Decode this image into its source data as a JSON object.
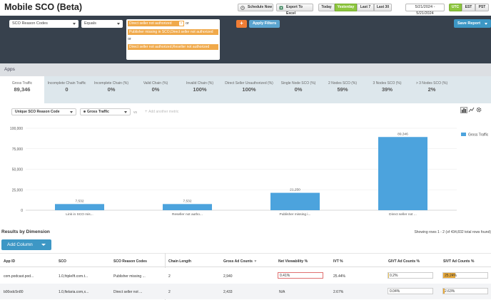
{
  "header": {
    "title": "Mobile SCO (Beta)",
    "schedule_label": "Schedule Now",
    "export_label": "Export To Excel",
    "ranges": [
      {
        "label": "Today",
        "active": false
      },
      {
        "label": "Yesterday",
        "active": true
      },
      {
        "label": "Last 7",
        "active": false
      },
      {
        "label": "Last 30",
        "active": false
      }
    ],
    "date_range": "5/21/2024 - 5/21/2024",
    "timezones": [
      {
        "label": "UTC",
        "active": true
      },
      {
        "label": "EST",
        "active": false
      },
      {
        "label": "PST",
        "active": false
      }
    ]
  },
  "filter": {
    "field": "SCO Reason Codes",
    "operator": "Equals",
    "values": [
      "Direct seller not authorized",
      "Publisher missing in SCO,Direct seller not authorized",
      "Direct seller not authorized,Reseller not authorized"
    ],
    "or_label": "or",
    "add_icon": "plus-icon",
    "apply_label": "Apply Filters",
    "save_label": "Save Report",
    "colors": {
      "bar_bg": "#37414d",
      "tag": "#f0a94a",
      "add": "#f07d35",
      "apply": "#5ba4cf",
      "save": "#3d97c5"
    }
  },
  "apps_label": "Apps",
  "metrics": [
    {
      "label": "Gross Traffic",
      "value": "89,346",
      "selected": true
    },
    {
      "label": "Incomplete Chain Traffic",
      "value": "0",
      "selected": false
    },
    {
      "label": "Incomplete Chain (%)",
      "value": "0%",
      "selected": false
    },
    {
      "label": "Valid Chain (%)",
      "value": "0%",
      "selected": false
    },
    {
      "label": "Invalid Chain (%)",
      "value": "100%",
      "selected": false
    },
    {
      "label": "Direct Seller Unauthorized (%)",
      "value": "100%",
      "selected": false
    },
    {
      "label": "Single Node SCO (%)",
      "value": "0%",
      "selected": false
    },
    {
      "label": "2 Nodes SCO (%)",
      "value": "59%",
      "selected": false
    },
    {
      "label": "3 Nodes SCO (%)",
      "value": "39%",
      "selected": false
    },
    {
      "label": "> 3 Nodes SCO (%)",
      "value": "2%",
      "selected": false
    }
  ],
  "chart_controls": {
    "dimension": "Unique SCO Reason Code",
    "metric": "Gross Traffic",
    "vs_label": "vs",
    "add_metric_label": "Add another metric",
    "icons": [
      "bar-chart-icon",
      "line-chart-icon",
      "settings-icon"
    ]
  },
  "chart_data": {
    "type": "bar",
    "categories": [
      "Link in SCO mis...",
      "Reseller not autho...",
      "Publisher missing i...",
      "Direct seller not ..."
    ],
    "values": [
      7532,
      7532,
      21250,
      89346
    ],
    "data_labels": [
      "7,532",
      "7,532",
      "21,250",
      "89,346"
    ],
    "y_ticks": [
      "100,000",
      "75,000",
      "50,000",
      "25,000",
      "0"
    ],
    "ylim": [
      0,
      100000
    ],
    "legend": [
      {
        "name": "Gross Traffic",
        "color": "#4ca3dd"
      }
    ],
    "legend_position": "top-right",
    "bar_color": "#4ca3dd",
    "grid": true
  },
  "results": {
    "title": "Results by Dimension",
    "showing": "Showing rows 1 - 2 (of 434,832 total rows found)",
    "add_column_label": "Add Column",
    "columns": [
      "App ID",
      "SCO",
      "SCO Reason Codes",
      "Chain Length",
      "Gross Ad Counts",
      "Net Viewability %",
      "IVT %",
      "GIVT Ad Counts %",
      "SIVT Ad Counts %"
    ],
    "rows": [
      {
        "app_id": "com.podcast.pod...",
        "sco": "1.0,fripleIft.com.t...",
        "reason": "Publisher missing ...",
        "chain": "2",
        "gross": "2,940",
        "viewability": "0.41%",
        "viewability_pct": 0.41,
        "ivt": "25.44%",
        "givt": "0.2%",
        "givt_pct": 0.2,
        "sivt": "25.24%",
        "sivt_pct": 25.24
      },
      {
        "app_id": "b00odc5n80",
        "sco": "1.0,ftelaria.com,x...",
        "reason": "Direct seller not ...",
        "chain": "2",
        "gross": "2,433",
        "viewability": "N/A",
        "viewability_pct": null,
        "ivt": "2.67%",
        "givt": "0.04%",
        "givt_pct": 0.04,
        "sivt": "2.63%",
        "sivt_pct": 2.63
      }
    ]
  }
}
